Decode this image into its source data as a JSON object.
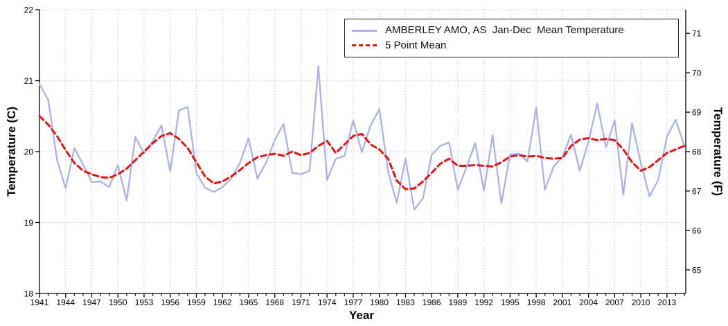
{
  "chart_data": {
    "type": "line",
    "title": "",
    "xlabel": "Year",
    "ylabel_left": "Temperature (C)",
    "ylabel_right": "Temperature (F)",
    "xlim": [
      1941,
      2015
    ],
    "ylim_left": [
      18,
      22
    ],
    "ylim_right_unit": "F",
    "yticks_left": [
      18,
      19,
      20,
      21,
      22
    ],
    "yticks_right": [
      65,
      66,
      67,
      68,
      69,
      70,
      71
    ],
    "xticks": [
      1941,
      1944,
      1947,
      1950,
      1953,
      1956,
      1959,
      1962,
      1965,
      1968,
      1971,
      1974,
      1977,
      1980,
      1983,
      1986,
      1989,
      1992,
      1995,
      1998,
      2001,
      2004,
      2007,
      2010,
      2013
    ],
    "grid": true,
    "legend_position": "top-center",
    "grid_color": "#c0c0c0",
    "axis_color": "#000000",
    "x": [
      1941,
      1942,
      1943,
      1944,
      1945,
      1946,
      1947,
      1948,
      1949,
      1950,
      1951,
      1952,
      1953,
      1954,
      1955,
      1956,
      1957,
      1958,
      1959,
      1960,
      1961,
      1962,
      1963,
      1964,
      1965,
      1966,
      1967,
      1968,
      1969,
      1970,
      1971,
      1972,
      1973,
      1974,
      1975,
      1976,
      1977,
      1978,
      1979,
      1980,
      1981,
      1982,
      1983,
      1984,
      1985,
      1986,
      1987,
      1988,
      1989,
      1990,
      1991,
      1992,
      1993,
      1994,
      1995,
      1996,
      1997,
      1998,
      1999,
      2000,
      2001,
      2002,
      2003,
      2004,
      2005,
      2006,
      2007,
      2008,
      2009,
      2010,
      2011,
      2012,
      2013,
      2014,
      2015
    ],
    "series": [
      {
        "name": "AMBERLEY AMO, AS  Jan-Dec  Mean Temperature",
        "color": "#a9b1e8",
        "style": "solid",
        "width": 2.3,
        "values": [
          20.95,
          20.73,
          19.89,
          19.48,
          20.05,
          19.82,
          19.57,
          19.58,
          19.5,
          19.81,
          19.31,
          20.21,
          19.97,
          20.15,
          20.37,
          19.72,
          20.58,
          20.63,
          19.7,
          19.49,
          19.43,
          19.5,
          19.62,
          19.84,
          20.19,
          19.62,
          19.84,
          20.16,
          20.39,
          19.7,
          19.68,
          19.73,
          21.2,
          19.6,
          19.9,
          19.94,
          20.44,
          19.99,
          20.37,
          20.6,
          19.72,
          19.28,
          19.9,
          19.18,
          19.34,
          19.95,
          20.08,
          20.13,
          19.46,
          19.78,
          20.12,
          19.45,
          20.23,
          19.27,
          19.96,
          19.97,
          19.86,
          20.62,
          19.46,
          19.79,
          19.92,
          20.24,
          19.73,
          20.14,
          20.68,
          20.06,
          20.44,
          19.39,
          20.4,
          19.84,
          19.37,
          19.6,
          20.21,
          20.45,
          20.08
        ]
      },
      {
        "name": "5 Point Mean",
        "color": "#e81210",
        "style": "dashed",
        "width": 3,
        "values": [
          20.5,
          20.38,
          20.22,
          20.02,
          19.84,
          19.73,
          19.68,
          19.64,
          19.63,
          19.68,
          19.76,
          19.88,
          20.0,
          20.12,
          20.22,
          20.26,
          20.18,
          20.05,
          19.85,
          19.65,
          19.55,
          19.58,
          19.65,
          19.74,
          19.84,
          19.92,
          19.95,
          19.97,
          19.94,
          20.0,
          19.95,
          19.98,
          20.08,
          20.15,
          19.98,
          20.1,
          20.22,
          20.25,
          20.1,
          20.03,
          19.9,
          19.59,
          19.47,
          19.48,
          19.58,
          19.7,
          19.83,
          19.9,
          19.8,
          19.8,
          19.81,
          19.8,
          19.79,
          19.85,
          19.93,
          19.95,
          19.93,
          19.94,
          19.91,
          19.9,
          19.91,
          20.08,
          20.17,
          20.19,
          20.16,
          20.18,
          20.16,
          20.03,
          19.85,
          19.73,
          19.78,
          19.88,
          19.98,
          20.03,
          20.08
        ]
      }
    ]
  }
}
